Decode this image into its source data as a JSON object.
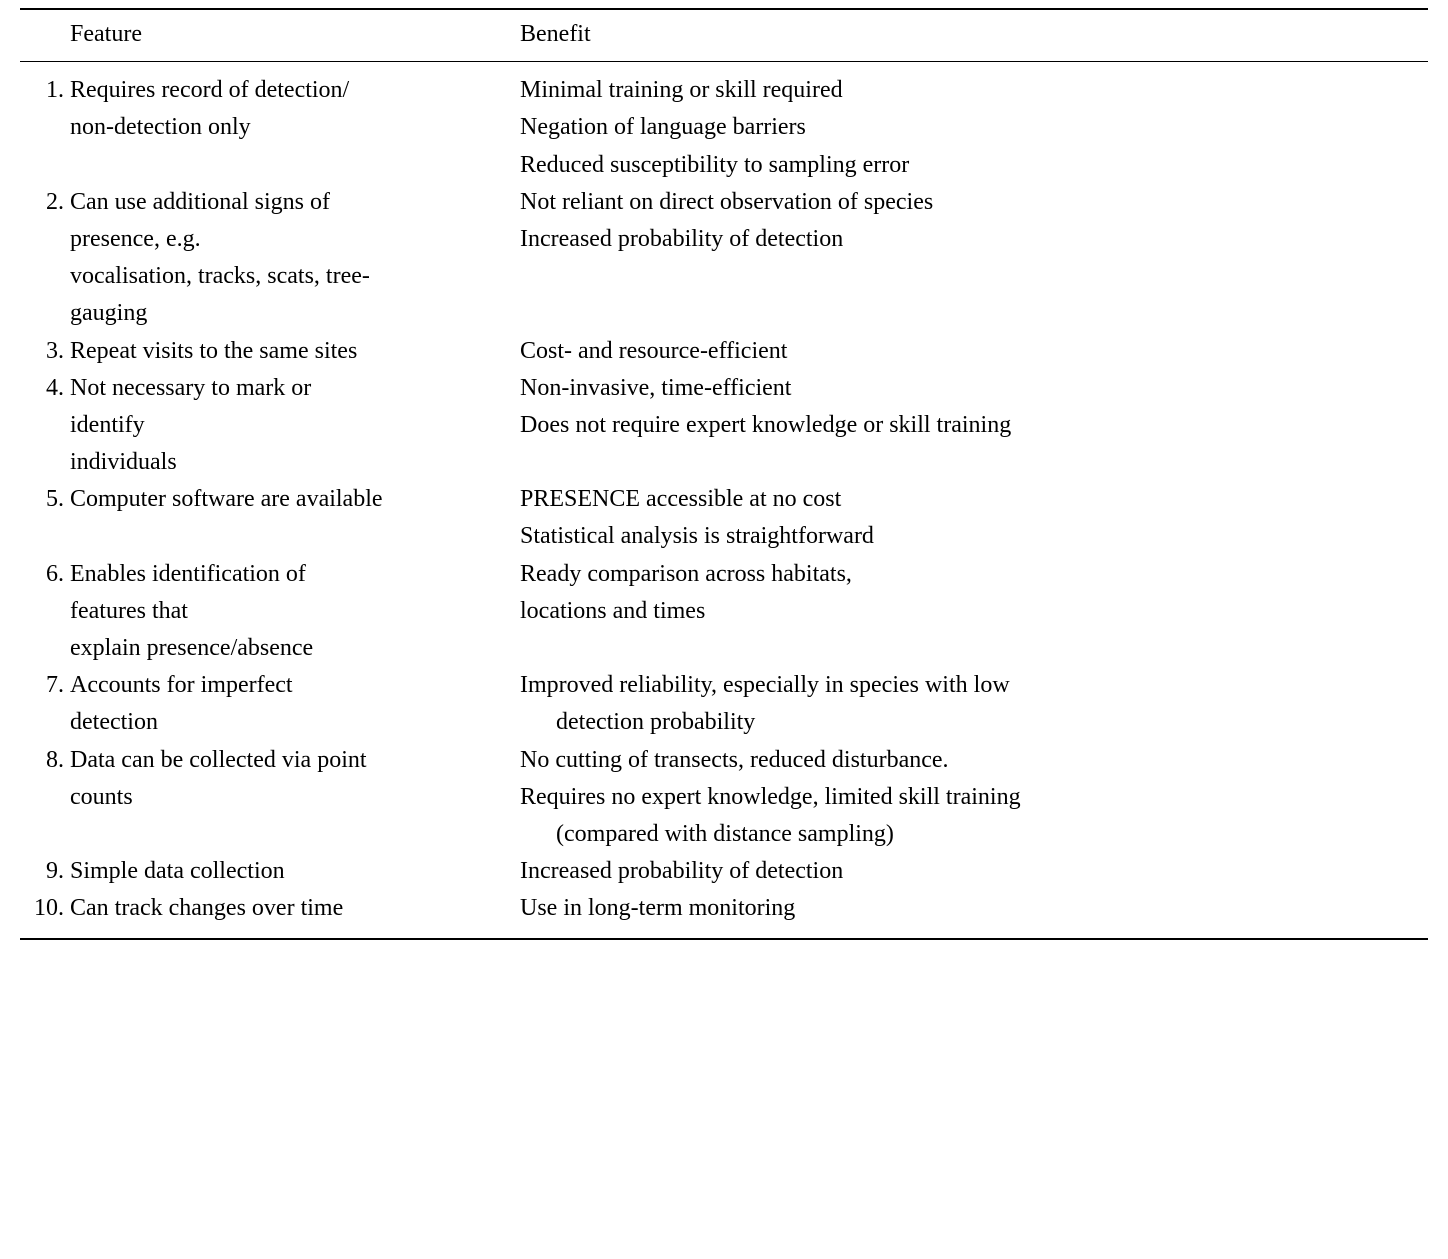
{
  "header": {
    "feature": "Feature",
    "benefit": "Benefit"
  },
  "rows": [
    {
      "num": "1.",
      "feature_lines": [
        "Requires record of detection/",
        "non-detection only"
      ],
      "benefit_lines": [
        {
          "text": "Minimal training or skill required",
          "indent": false
        },
        {
          "text": "Negation of language barriers",
          "indent": false
        },
        {
          "text": "Reduced susceptibility to sampling error",
          "indent": false
        }
      ]
    },
    {
      "num": "2.",
      "feature_lines": [
        "Can use additional signs of",
        "presence, e.g.",
        "vocalisation, tracks, scats, tree-",
        "gauging"
      ],
      "benefit_lines": [
        {
          "text": "Not reliant on direct observation of species",
          "indent": false
        },
        {
          "text": "Increased probability of detection",
          "indent": false
        }
      ]
    },
    {
      "num": "3.",
      "feature_lines": [
        "Repeat visits to the same sites"
      ],
      "benefit_lines": [
        {
          "text": "Cost- and resource-efficient",
          "indent": false
        }
      ]
    },
    {
      "num": "4.",
      "feature_lines": [
        "Not necessary to mark or",
        "identify",
        "individuals"
      ],
      "benefit_lines": [
        {
          "text": "Non-invasive, time-efficient",
          "indent": false
        },
        {
          "text": "Does not require expert knowledge or skill training",
          "indent": false
        }
      ]
    },
    {
      "num": "5.",
      "feature_lines": [
        "Computer software are available"
      ],
      "benefit_lines": [
        {
          "text": "PRESENCE accessible at no cost",
          "indent": false
        },
        {
          "text": "Statistical analysis is straightforward",
          "indent": false
        }
      ]
    },
    {
      "num": "6.",
      "feature_lines": [
        "Enables identification of",
        "features that",
        "explain presence/absence"
      ],
      "benefit_lines": [
        {
          "text": "Ready comparison across habitats,",
          "indent": false
        },
        {
          "text": "locations and times",
          "indent": false
        }
      ]
    },
    {
      "num": "7.",
      "feature_lines": [
        "Accounts for imperfect",
        "detection"
      ],
      "benefit_lines": [
        {
          "text": "Improved reliability, especially in species with low",
          "indent": false
        },
        {
          "text": "detection probability",
          "indent": true
        }
      ]
    },
    {
      "num": "8.",
      "feature_lines": [
        "Data can be collected via point",
        "counts"
      ],
      "benefit_lines": [
        {
          "text": "No cutting of transects, reduced disturbance.",
          "indent": false
        },
        {
          "text": "Requires no expert knowledge, limited skill training",
          "indent": false
        },
        {
          "text": "(compared with distance sampling)",
          "indent": true
        }
      ]
    },
    {
      "num": "9.",
      "feature_lines": [
        "Simple data collection"
      ],
      "benefit_lines": [
        {
          "text": "Increased probability of detection",
          "indent": false
        }
      ]
    },
    {
      "num": "10.",
      "feature_lines": [
        "Can track changes over time"
      ],
      "benefit_lines": [
        {
          "text": "Use in long-term monitoring",
          "indent": false
        }
      ]
    }
  ]
}
